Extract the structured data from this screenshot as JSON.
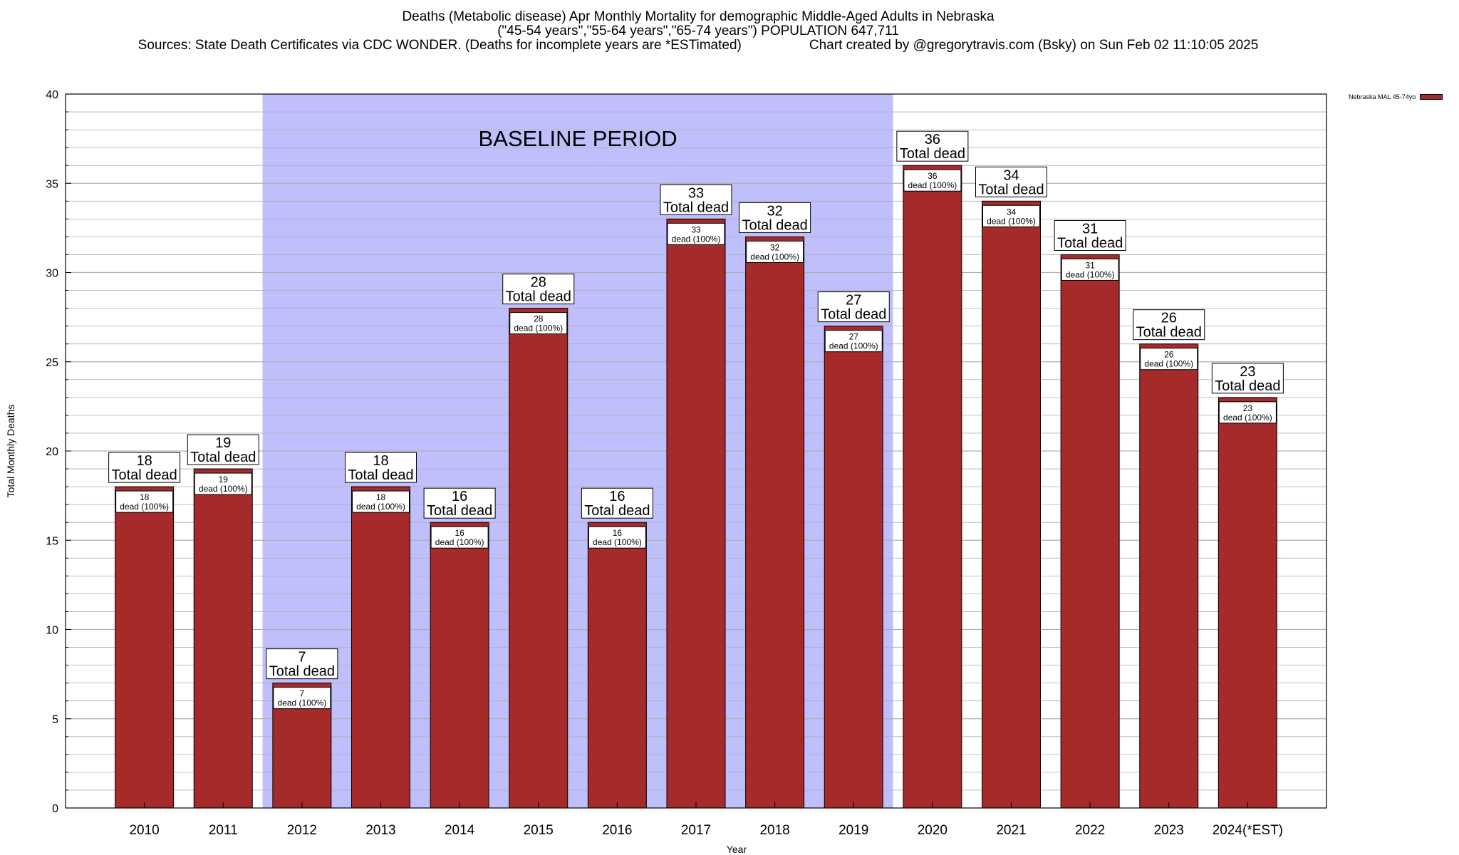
{
  "chart_data": {
    "type": "bar",
    "title_line1": "Deaths (Metabolic disease) Apr Monthly Mortality for demographic Middle-Aged Adults in Nebraska",
    "title_line2": "(\"45-54 years\",\"55-64 years\",\"65-74 years\") POPULATION 647,711",
    "sources": "Sources: State Death Certificates via CDC WONDER. (Deaths for incomplete years are *ESTimated)",
    "credit": "Chart created by @gregorytravis.com (Bsky) on Sun Feb 02 11:10:05 2025",
    "xlabel": "Year",
    "ylabel": "Total Monthly Deaths",
    "ylim": [
      0,
      40
    ],
    "yticks": [
      0,
      5,
      10,
      15,
      20,
      25,
      30,
      35,
      40
    ],
    "categories": [
      "2010",
      "2011",
      "2012",
      "2013",
      "2014",
      "2015",
      "2016",
      "2017",
      "2018",
      "2019",
      "2020",
      "2021",
      "2022",
      "2023",
      "2024(*EST)"
    ],
    "series": [
      {
        "name": "Nebraska MAL 45-74yo",
        "values": [
          18,
          19,
          7,
          18,
          16,
          28,
          16,
          33,
          32,
          27,
          36,
          34,
          31,
          26,
          23
        ]
      }
    ],
    "total_label_suffix": "Total dead",
    "inner_label_suffix": "dead (100%)",
    "baseline_label": "BASELINE PERIOD",
    "baseline_range": [
      "2012",
      "2019"
    ],
    "grid": true,
    "legend_position": "top-right",
    "colors": {
      "bar": "#a52a2a",
      "bar_edge": "#000000",
      "baseline": "#bfbffb",
      "grid": "#b0b0b0"
    }
  }
}
